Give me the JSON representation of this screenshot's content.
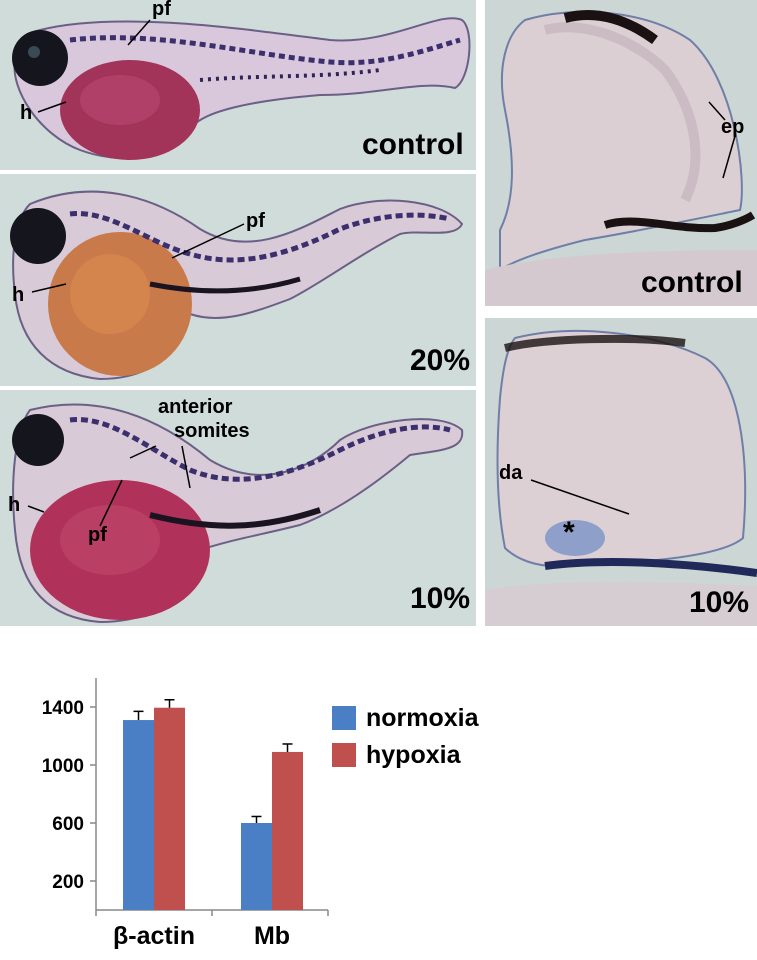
{
  "panels": {
    "embryo_control": {
      "condition": "control",
      "labels": {
        "pf": "pf",
        "h": "h"
      }
    },
    "embryo_20": {
      "condition": "20%",
      "labels": {
        "pf": "pf",
        "h": "h"
      }
    },
    "embryo_10": {
      "condition": "10%",
      "labels": {
        "anterior": "anterior",
        "somites": "somites",
        "h": "h",
        "pf": "pf"
      }
    },
    "section_control": {
      "condition": "control",
      "labels": {
        "ep": "ep"
      }
    },
    "section_10": {
      "condition": "10%",
      "labels": {
        "da": "da",
        "asterisk": "*"
      }
    }
  },
  "chart_data": {
    "type": "bar",
    "categories": [
      "β-actin",
      "Mb"
    ],
    "series": [
      {
        "name": "normoxia",
        "values": [
          1310,
          600
        ],
        "errors": [
          60,
          45
        ],
        "color": "#4a7fc6"
      },
      {
        "name": "hypoxia",
        "values": [
          1395,
          1090
        ],
        "errors": [
          55,
          55
        ],
        "color": "#c0504d"
      }
    ],
    "yticks": [
      200,
      600,
      1000,
      1400
    ],
    "ylim": [
      0,
      1600
    ],
    "legend_position": "right",
    "grid": false
  }
}
